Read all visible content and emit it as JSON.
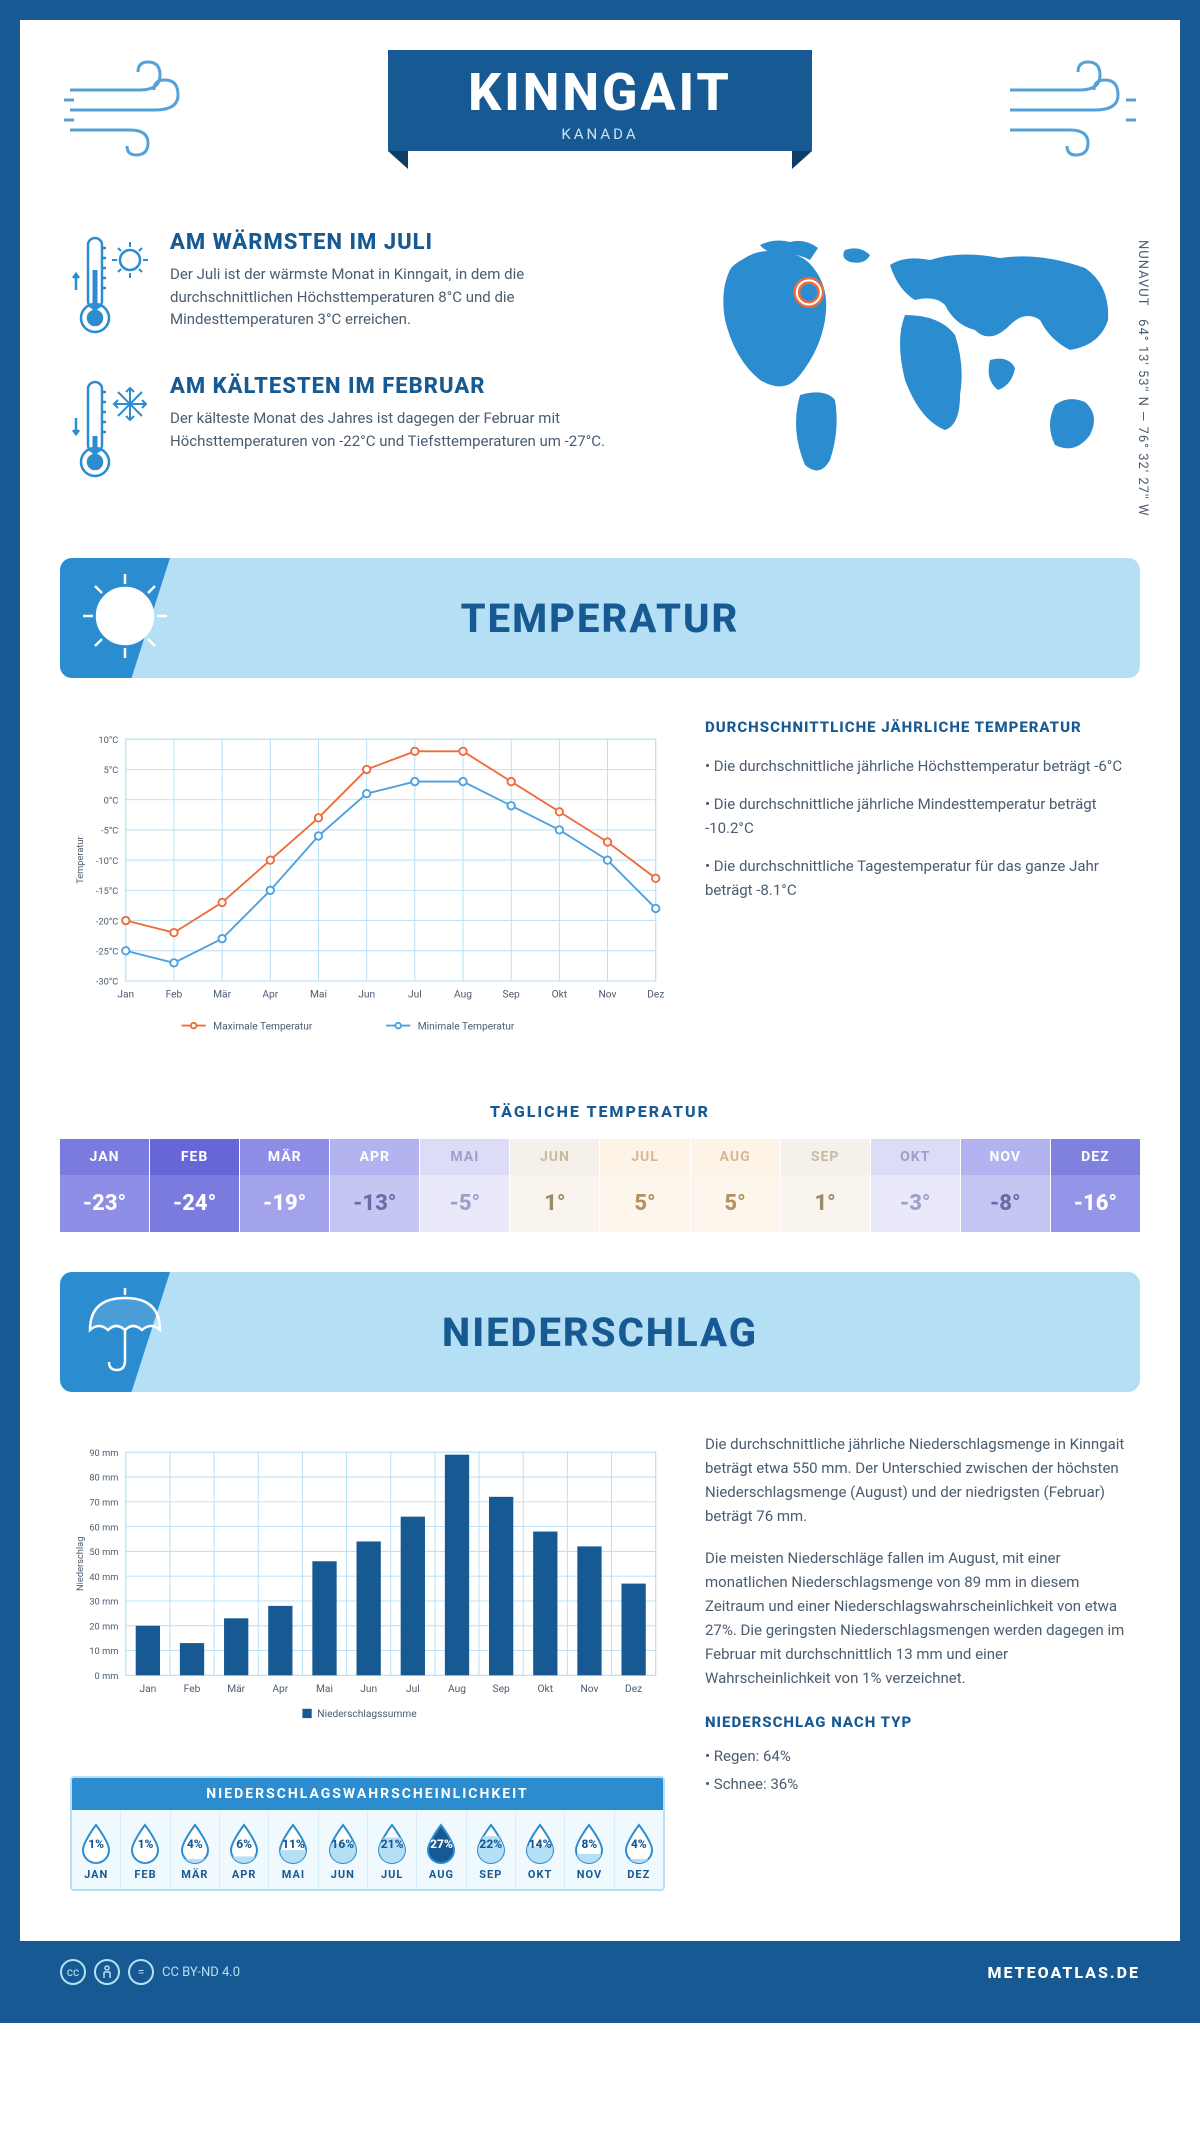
{
  "header": {
    "title": "KINNGAIT",
    "subtitle": "KANADA"
  },
  "coords": {
    "text": "64° 13' 53'' N — 76° 32' 27'' W",
    "region": "NUNAVUT"
  },
  "map": {
    "marker": {
      "lon_pct": 27,
      "lat_pct": 24
    }
  },
  "intro": {
    "warm": {
      "title": "AM WÄRMSTEN IM JULI",
      "text": "Der Juli ist der wärmste Monat in Kinngait, in dem die durchschnittlichen Höchsttemperaturen 8°C und die Mindesttemperaturen 3°C erreichen."
    },
    "cold": {
      "title": "AM KÄLTESTEN IM FEBRUAR",
      "text": "Der kälteste Monat des Jahres ist dagegen der Februar mit Höchsttemperaturen von -22°C und Tiefsttemperaturen um -27°C."
    }
  },
  "colors": {
    "primary": "#175a93",
    "accent": "#2b8cd0",
    "light": "#b5dff5",
    "bg": "#ffffff",
    "text": "#4a5c6f",
    "max_line": "#ef6b3a",
    "min_line": "#4da0e0",
    "bar_fill": "#175a93",
    "grid": "#b5dff5"
  },
  "months": [
    "Jan",
    "Feb",
    "Mär",
    "Apr",
    "Mai",
    "Jun",
    "Jul",
    "Aug",
    "Sep",
    "Okt",
    "Nov",
    "Dez"
  ],
  "months_upper": [
    "JAN",
    "FEB",
    "MÄR",
    "APR",
    "MAI",
    "JUN",
    "JUL",
    "AUG",
    "SEP",
    "OKT",
    "NOV",
    "DEZ"
  ],
  "temperature": {
    "section_title": "TEMPERATUR",
    "chart": {
      "type": "line",
      "y_label": "Temperatur",
      "ylim": [
        -30,
        10
      ],
      "ytick_step": 5,
      "y_unit": "°C",
      "series_max": {
        "label": "Maximale Temperatur",
        "color": "#ef6b3a",
        "values": [
          -20,
          -22,
          -17,
          -10,
          -3,
          5,
          8,
          8,
          3,
          -2,
          -7,
          -13
        ]
      },
      "series_min": {
        "label": "Minimale Temperatur",
        "color": "#4da0e0",
        "values": [
          -25,
          -27,
          -23,
          -15,
          -6,
          1,
          3,
          3,
          -1,
          -5,
          -10,
          -18
        ]
      },
      "grid_color": "#b5dff5",
      "line_width": 2,
      "marker": "circle",
      "marker_size": 4
    },
    "facts_title": "DURCHSCHNITTLICHE JÄHRLICHE TEMPERATUR",
    "facts": [
      "• Die durchschnittliche jährliche Höchsttemperatur beträgt -6°C",
      "• Die durchschnittliche jährliche Mindesttemperatur beträgt -10.2°C",
      "• Die durchschnittliche Tagestemperatur für das ganze Jahr beträgt -8.1°C"
    ],
    "daily": {
      "title": "TÄGLICHE TEMPERATUR",
      "values": [
        "-23°",
        "-24°",
        "-19°",
        "-13°",
        "-5°",
        "1°",
        "5°",
        "5°",
        "1°",
        "-3°",
        "-8°",
        "-16°"
      ],
      "header_bg": [
        "#7a7adf",
        "#6666d6",
        "#8e8ee6",
        "#b3b3ef",
        "#dcdcf7",
        "#f5f0e9",
        "#fdf3e6",
        "#fdf3e6",
        "#f5f0e9",
        "#dcdcf7",
        "#b3b3ef",
        "#8080e0"
      ],
      "header_fg": [
        "#ffffff",
        "#ffffff",
        "#ffffff",
        "#ffffff",
        "#9e9ec8",
        "#c4bba6",
        "#d4b894",
        "#d4b894",
        "#c4bba6",
        "#9e9ec8",
        "#ffffff",
        "#ffffff"
      ],
      "value_bg": [
        "#8e8ee6",
        "#7a7adf",
        "#a3a3ec",
        "#c6c6f3",
        "#e9e9fa",
        "#f9f4ee",
        "#fdf6ec",
        "#fdf6ec",
        "#f9f4ee",
        "#e9e9fa",
        "#c6c6f3",
        "#9494e8"
      ],
      "value_fg": [
        "#ffffff",
        "#ffffff",
        "#ffffff",
        "#6b6ba8",
        "#9e9ec8",
        "#9a8c6a",
        "#b59060",
        "#b59060",
        "#9a8c6a",
        "#9e9ec8",
        "#6b6ba8",
        "#ffffff"
      ]
    }
  },
  "precipitation": {
    "section_title": "NIEDERSCHLAG",
    "chart": {
      "type": "bar",
      "y_label": "Niederschlag",
      "ylim": [
        0,
        90
      ],
      "ytick_step": 10,
      "y_unit": " mm",
      "values": [
        20,
        13,
        23,
        28,
        46,
        54,
        64,
        89,
        72,
        58,
        52,
        37
      ],
      "bar_color": "#175a93",
      "bar_width": 0.55,
      "grid_color": "#b5dff5",
      "legend": "Niederschlagssumme"
    },
    "probability": {
      "title": "NIEDERSCHLAGSWAHRSCHEINLICHKEIT",
      "values": [
        1,
        1,
        4,
        6,
        11,
        16,
        21,
        27,
        22,
        14,
        8,
        4
      ],
      "drop_outline": "#2b8cd0",
      "drop_fill_at": 27
    },
    "text": {
      "p1": "Die durchschnittliche jährliche Niederschlagsmenge in Kinngait beträgt etwa 550 mm. Der Unterschied zwischen der höchsten Niederschlagsmenge (August) und der niedrigsten (Februar) beträgt 76 mm.",
      "p2": "Die meisten Niederschläge fallen im August, mit einer monatlichen Niederschlagsmenge von 89 mm in diesem Zeitraum und einer Niederschlagswahrscheinlichkeit von etwa 27%. Die geringsten Niederschlagsmengen werden dagegen im Februar mit durchschnittlich 13 mm und einer Wahrscheinlichkeit von 1% verzeichnet.",
      "by_type_title": "NIEDERSCHLAG NACH TYP",
      "by_type": [
        "• Regen: 64%",
        "• Schnee: 36%"
      ]
    }
  },
  "footer": {
    "license": "CC BY-ND 4.0",
    "site": "METEOATLAS.DE"
  }
}
